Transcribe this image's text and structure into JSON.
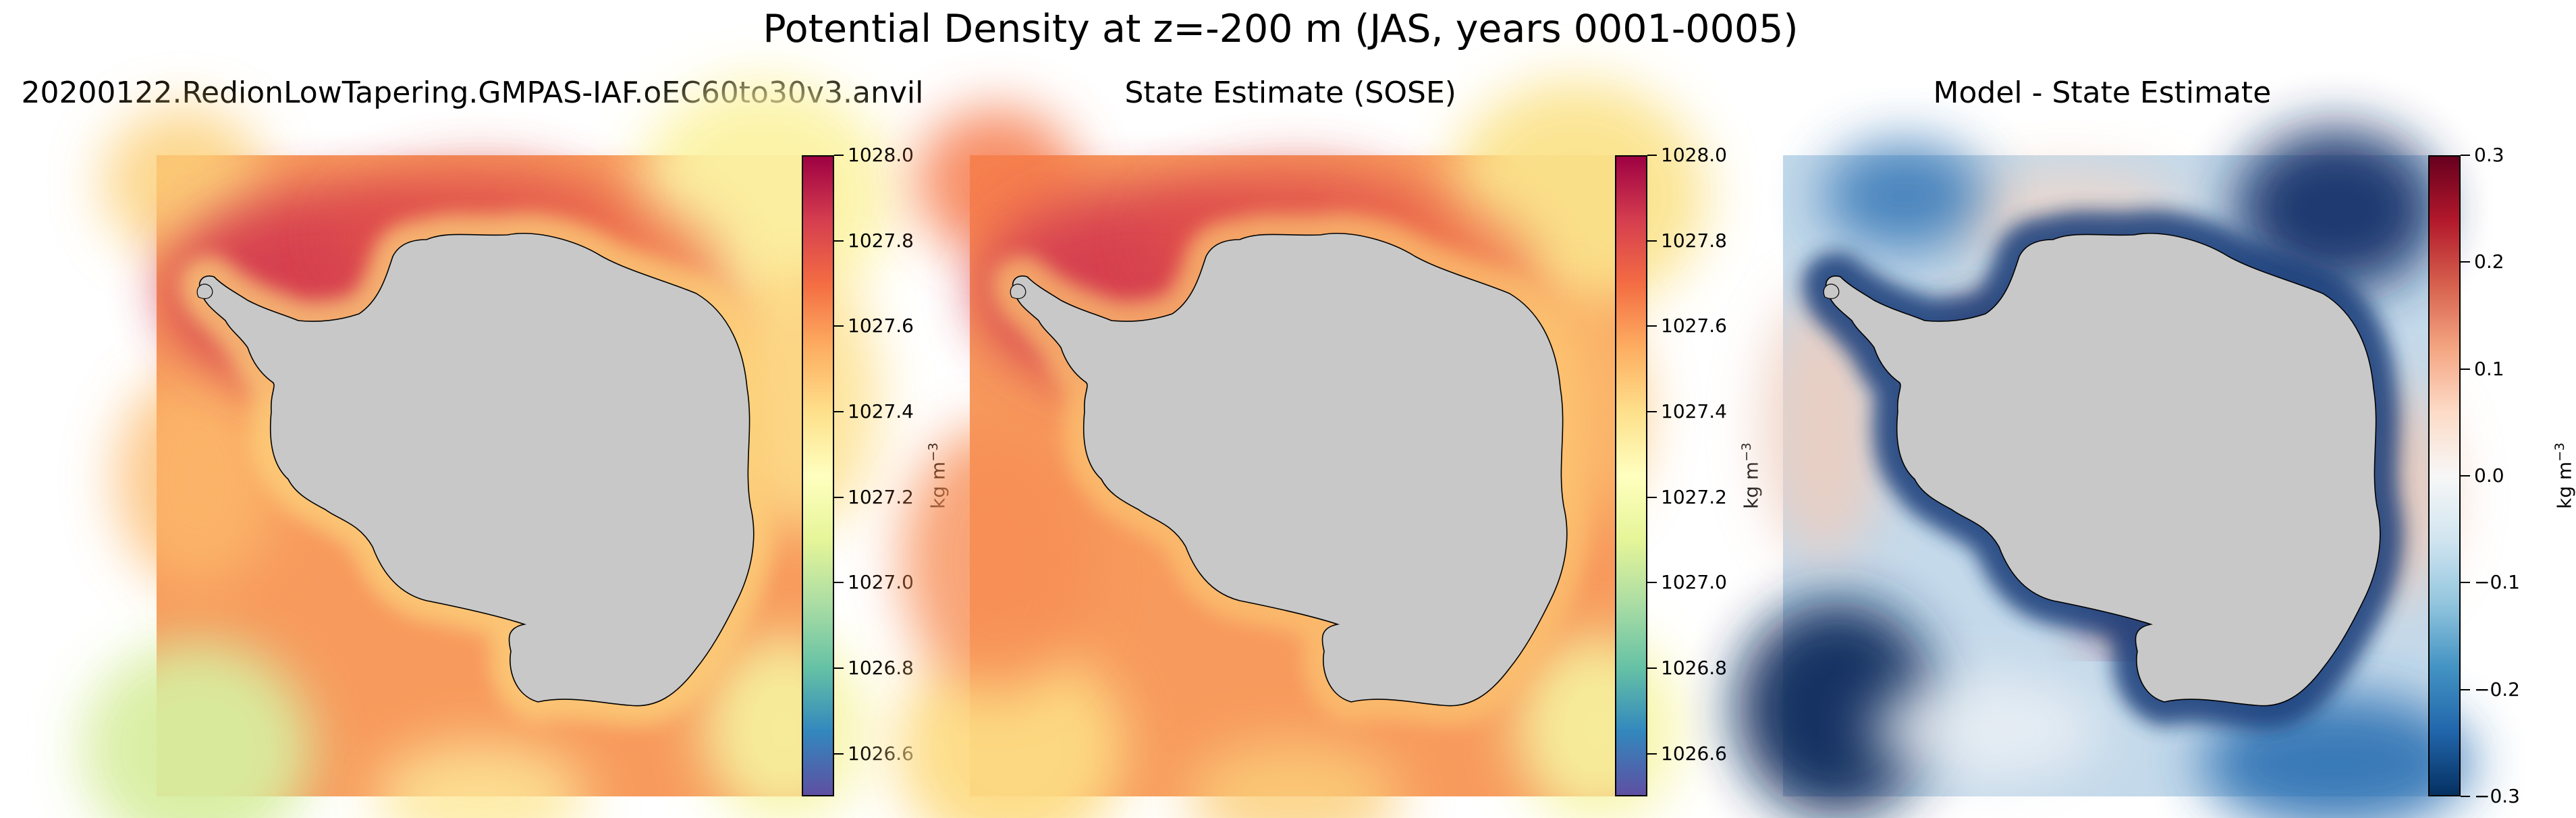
{
  "title": "Potential Density at z=-200 m (JAS, years 0001-0005)",
  "chart_data": [
    {
      "type": "heatmap",
      "title": "20200122.RedionLowTapering.GMPAS-IAF.oEC60to30v3.anvil",
      "colormap": "Spectral_r",
      "colorbar": {
        "label": "kg m",
        "label_sup": "−3",
        "range": [
          1026.5,
          1028.0
        ],
        "ticks": [
          "1026.6",
          "1026.8",
          "1027.0",
          "1027.2",
          "1027.4",
          "1027.6",
          "1027.8",
          "1028.0"
        ],
        "tick_values": [
          1026.6,
          1026.8,
          1027.0,
          1027.2,
          1027.4,
          1027.6,
          1027.8,
          1028.0
        ]
      },
      "field": "potential density, Southern Ocean polar stereographic map around Antarctica",
      "land_color": "#c8c8c8"
    },
    {
      "type": "heatmap",
      "title": "State Estimate (SOSE)",
      "colormap": "Spectral_r",
      "colorbar": {
        "label": "kg m",
        "label_sup": "−3",
        "range": [
          1026.5,
          1028.0
        ],
        "ticks": [
          "1026.6",
          "1026.8",
          "1027.0",
          "1027.2",
          "1027.4",
          "1027.6",
          "1027.8",
          "1028.0"
        ],
        "tick_values": [
          1026.6,
          1026.8,
          1027.0,
          1027.2,
          1027.4,
          1027.6,
          1027.8,
          1028.0
        ]
      },
      "field": "potential density, Southern Ocean polar stereographic map around Antarctica",
      "land_color": "#c8c8c8"
    },
    {
      "type": "heatmap",
      "title": "Model - State Estimate",
      "colormap": "RdBu_r",
      "colorbar": {
        "label": "kg m",
        "label_sup": "−3",
        "range": [
          -0.3,
          0.3
        ],
        "ticks": [
          "−0.3",
          "−0.2",
          "−0.1",
          "0.0",
          "0.1",
          "0.2",
          "0.3"
        ],
        "tick_values": [
          -0.3,
          -0.2,
          -0.1,
          0.0,
          0.1,
          0.2,
          0.3
        ]
      },
      "field": "model minus state estimate density difference",
      "land_color": "#c8c8c8"
    }
  ]
}
